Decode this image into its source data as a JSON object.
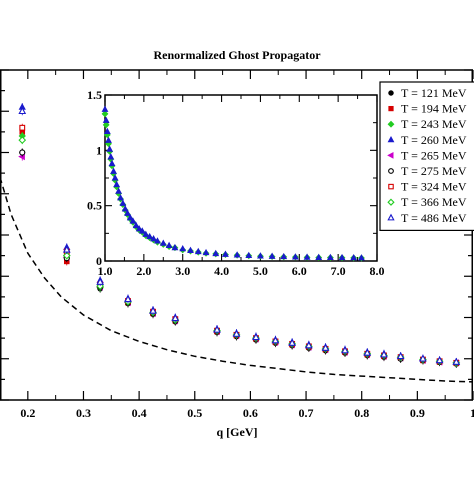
{
  "chart_data": [
    {
      "type": "scatter",
      "title": "Renormalized Ghost Propagator",
      "xlabel": "q [GeV]",
      "ylabel": "",
      "xlim": [
        0.15,
        1.0
      ],
      "ylim": [
        0,
        4.0
      ],
      "xticks": [
        "0.2",
        "0.3",
        "0.4",
        "0.5",
        "0.6",
        "0.7",
        "0.8",
        "0.9",
        "1"
      ],
      "x": [
        0.19,
        0.27,
        0.33,
        0.38,
        0.425,
        0.465,
        0.54,
        0.575,
        0.61,
        0.645,
        0.675,
        0.705,
        0.735,
        0.77,
        0.81,
        0.84,
        0.87,
        0.91,
        0.94,
        0.97
      ],
      "series": [
        {
          "name": "T = 121 MeV",
          "marker": "dot",
          "color": "#000000",
          "values": [
            3.0,
            1.72,
            1.35,
            1.17,
            1.04,
            0.95,
            0.82,
            0.77,
            0.73,
            0.69,
            0.66,
            0.63,
            0.6,
            0.57,
            0.54,
            0.52,
            0.5,
            0.48,
            0.46,
            0.44
          ]
        },
        {
          "name": "T = 194 MeV",
          "marker": "square",
          "color": "#d60000",
          "values": [
            3.25,
            1.68,
            1.38,
            1.18,
            1.05,
            0.96,
            0.83,
            0.78,
            0.74,
            0.7,
            0.67,
            0.64,
            0.61,
            0.58,
            0.55,
            0.53,
            0.51,
            0.48,
            0.46,
            0.45
          ]
        },
        {
          "name": "T = 243 MeV",
          "marker": "diamond",
          "color": "#22cc22",
          "values": [
            3.2,
            1.75,
            1.36,
            1.19,
            1.06,
            0.97,
            0.84,
            0.79,
            0.75,
            0.71,
            0.68,
            0.65,
            0.62,
            0.59,
            0.56,
            0.54,
            0.52,
            0.49,
            0.47,
            0.45
          ]
        },
        {
          "name": "T = 260 MeV",
          "marker": "triangle-up",
          "color": "#1a1acc",
          "values": [
            3.55,
            1.85,
            1.45,
            1.23,
            1.09,
            1.0,
            0.86,
            0.81,
            0.77,
            0.73,
            0.7,
            0.67,
            0.64,
            0.61,
            0.58,
            0.56,
            0.53,
            0.5,
            0.48,
            0.46
          ]
        },
        {
          "name": "T = 265 MeV",
          "marker": "triangle-left",
          "color": "#cc00cc",
          "values": [
            2.95,
            1.73,
            1.37,
            1.18,
            1.05,
            0.96,
            0.83,
            0.78,
            0.74,
            0.7,
            0.67,
            0.64,
            0.61,
            0.58,
            0.55,
            0.53,
            0.51,
            0.48,
            0.46,
            0.45
          ]
        },
        {
          "name": "T = 275 MeV",
          "marker": "circle-open",
          "color": "#000000",
          "values": [
            3.0,
            1.72,
            1.37,
            1.18,
            1.05,
            0.96,
            0.83,
            0.78,
            0.74,
            0.7,
            0.67,
            0.64,
            0.61,
            0.58,
            0.55,
            0.53,
            0.5,
            0.48,
            0.46,
            0.44
          ]
        },
        {
          "name": "T = 324 MeV",
          "marker": "square-open",
          "color": "#d60000",
          "values": [
            3.3,
            1.8,
            1.4,
            1.2,
            1.07,
            0.98,
            0.84,
            0.79,
            0.75,
            0.71,
            0.68,
            0.65,
            0.62,
            0.59,
            0.56,
            0.54,
            0.52,
            0.49,
            0.47,
            0.45
          ]
        },
        {
          "name": "T = 366 MeV",
          "marker": "diamond-open",
          "color": "#22cc22",
          "values": [
            3.15,
            1.75,
            1.38,
            1.19,
            1.06,
            0.97,
            0.84,
            0.79,
            0.75,
            0.71,
            0.68,
            0.65,
            0.62,
            0.59,
            0.56,
            0.54,
            0.52,
            0.49,
            0.47,
            0.45
          ]
        },
        {
          "name": "T = 486 MeV",
          "marker": "triangle-open",
          "color": "#1a1acc",
          "values": [
            3.5,
            1.82,
            1.43,
            1.22,
            1.08,
            0.99,
            0.85,
            0.8,
            0.76,
            0.72,
            0.69,
            0.66,
            0.63,
            0.6,
            0.57,
            0.55,
            0.53,
            0.5,
            0.48,
            0.46
          ]
        }
      ],
      "reference_curve": {
        "style": "dashed",
        "color": "#000000",
        "x": [
          0.15,
          0.17,
          0.2,
          0.23,
          0.26,
          0.3,
          0.35,
          0.4,
          0.45,
          0.5,
          0.55,
          0.6,
          0.65,
          0.7,
          0.75,
          0.8,
          0.85,
          0.9,
          0.95,
          1.0
        ],
        "y": [
          2.7,
          2.25,
          1.78,
          1.48,
          1.25,
          1.03,
          0.84,
          0.71,
          0.61,
          0.53,
          0.47,
          0.42,
          0.38,
          0.34,
          0.31,
          0.29,
          0.27,
          0.25,
          0.23,
          0.22
        ]
      },
      "legend_position": "top-right"
    },
    {
      "type": "scatter",
      "title": "",
      "xlabel": "",
      "ylabel": "",
      "xlim": [
        1.0,
        8.0
      ],
      "ylim": [
        0,
        1.5
      ],
      "xticks": [
        "1.0",
        "2.0",
        "3.0",
        "4.0",
        "5.0",
        "6.0",
        "7.0",
        "8.0"
      ],
      "yticks": [
        "0",
        "0.5",
        "1",
        "1.5"
      ],
      "x": [
        1.0,
        1.03,
        1.06,
        1.09,
        1.12,
        1.15,
        1.18,
        1.22,
        1.26,
        1.3,
        1.35,
        1.4,
        1.46,
        1.52,
        1.58,
        1.65,
        1.72,
        1.8,
        1.88,
        1.96,
        2.05,
        2.15,
        2.25,
        2.35,
        2.5,
        2.65,
        2.8,
        3.0,
        3.2,
        3.4,
        3.6,
        3.85,
        4.1,
        4.4,
        4.7,
        5.0,
        5.3,
        5.6,
        5.9,
        6.2,
        6.5,
        6.8,
        7.1,
        7.4,
        7.6
      ],
      "series": [
        {
          "name": "T = 121 MeV",
          "values": [
            1.33,
            1.23,
            1.14,
            1.06,
            0.99,
            0.92,
            0.86,
            0.79,
            0.73,
            0.67,
            0.61,
            0.56,
            0.51,
            0.46,
            0.42,
            0.38,
            0.35,
            0.31,
            0.28,
            0.26,
            0.23,
            0.21,
            0.19,
            0.17,
            0.15,
            0.13,
            0.12,
            0.1,
            0.09,
            0.08,
            0.07,
            0.064,
            0.058,
            0.052,
            0.047,
            0.043,
            0.04,
            0.037,
            0.035,
            0.033,
            0.031,
            0.03,
            0.029,
            0.028,
            0.027
          ]
        },
        {
          "name": "T = 260 MeV",
          "values": [
            1.37,
            1.27,
            1.17,
            1.09,
            1.01,
            0.94,
            0.88,
            0.81,
            0.75,
            0.69,
            0.63,
            0.57,
            0.52,
            0.47,
            0.43,
            0.39,
            0.36,
            0.32,
            0.29,
            0.27,
            0.24,
            0.22,
            0.2,
            0.18,
            0.16,
            0.14,
            0.12,
            0.11,
            0.095,
            0.085,
            0.075,
            0.067,
            0.06,
            0.054,
            0.049,
            0.045,
            0.042,
            0.039,
            0.036,
            0.034,
            0.032,
            0.031,
            0.03,
            0.029,
            0.028
          ]
        }
      ]
    }
  ]
}
